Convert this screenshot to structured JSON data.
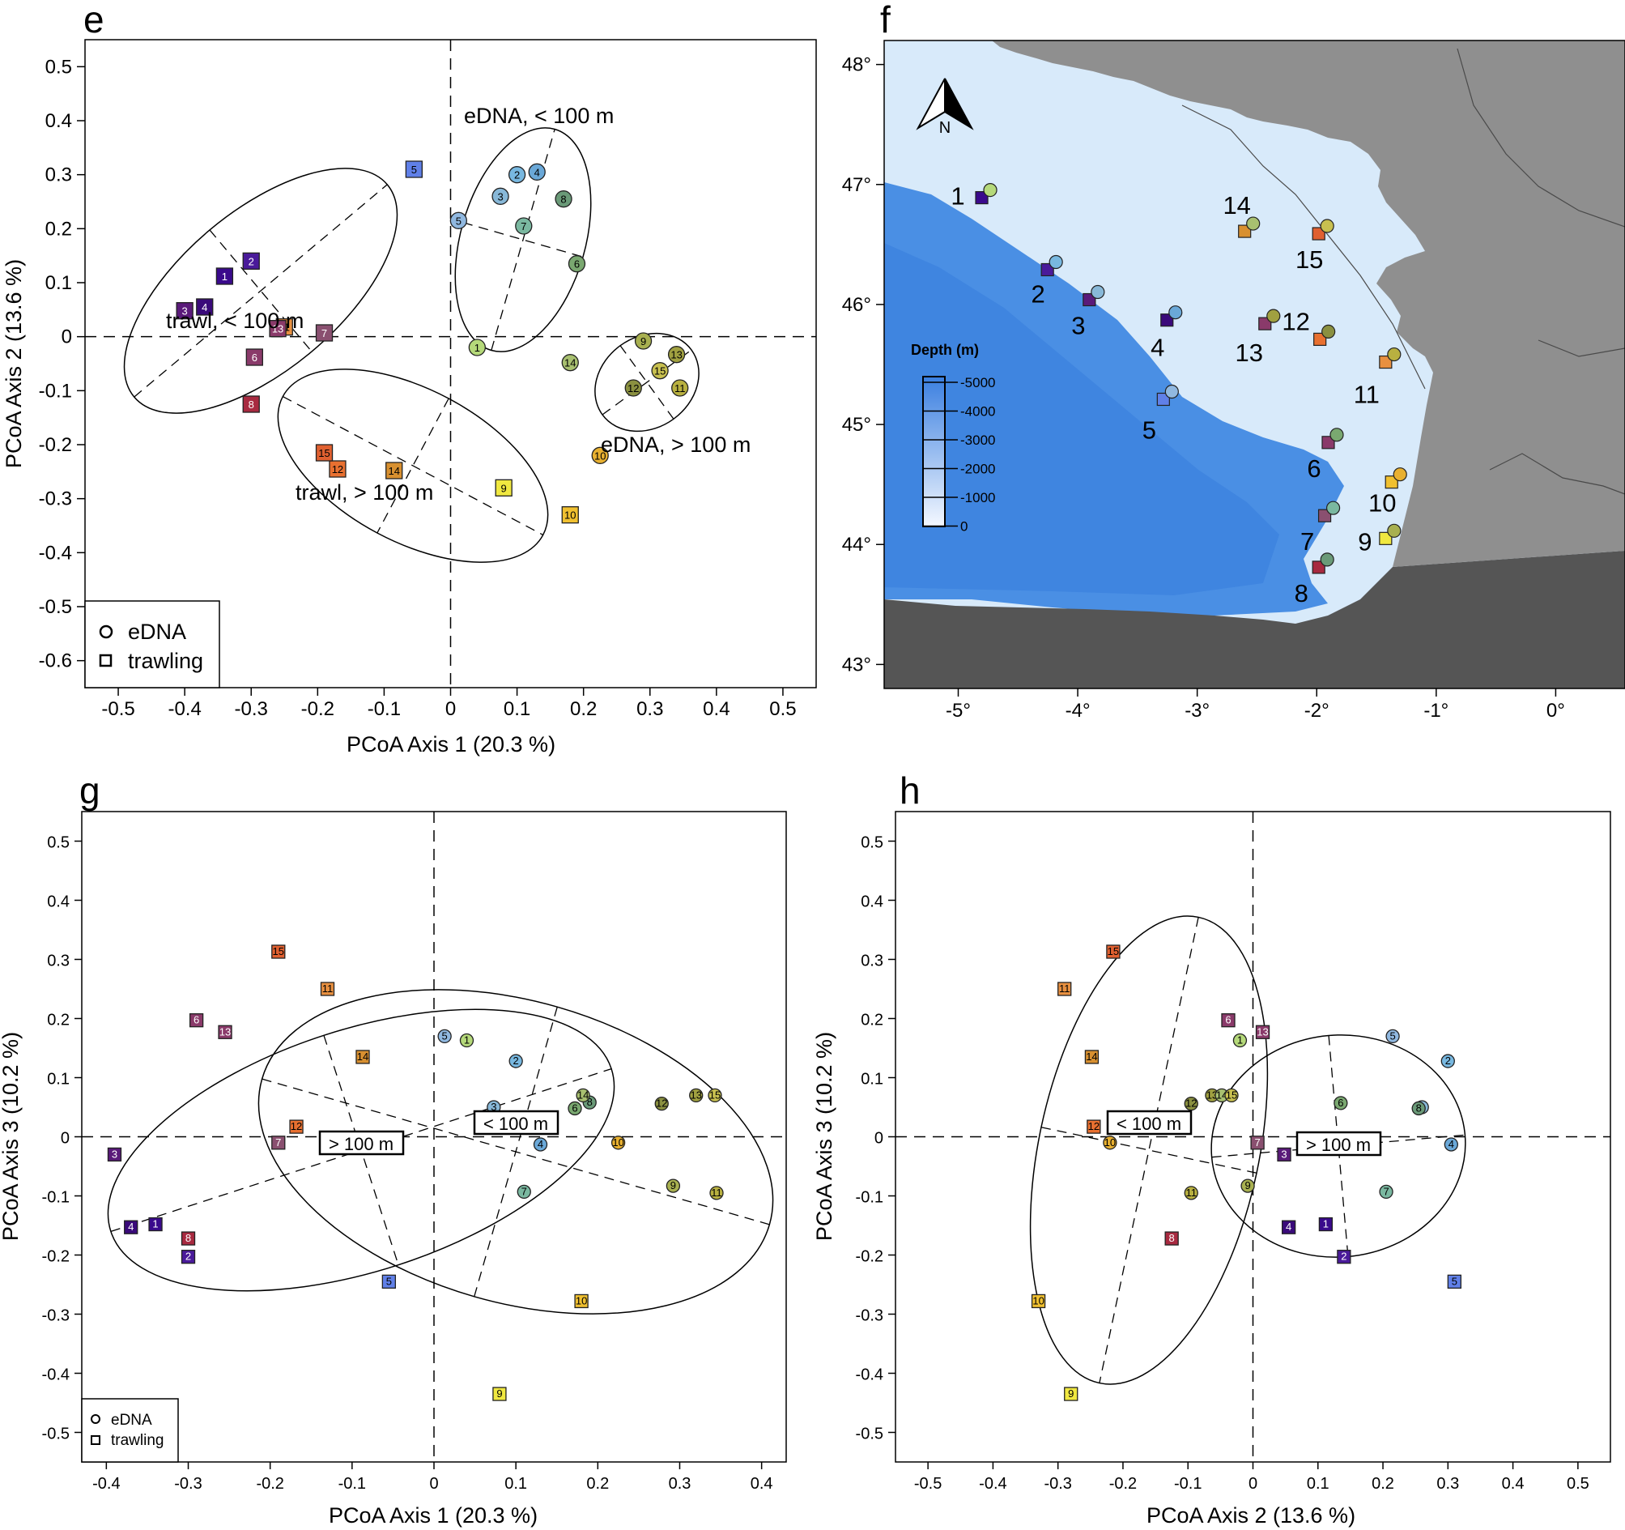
{
  "chart_data": [
    {
      "panel": "e",
      "type": "scatter",
      "xlabel": "PCoA Axis 1 (20.3 %)",
      "ylabel": "PCoA Axis 2 (13.6 %)",
      "xlim": [
        -0.55,
        0.55
      ],
      "ylim": [
        -0.65,
        0.55
      ],
      "xticks": [
        -0.5,
        -0.4,
        -0.3,
        -0.2,
        -0.1,
        0,
        0.1,
        0.2,
        0.3,
        0.4,
        0.5
      ],
      "xtick_labels": [
        "-0.5",
        "-0.4",
        "-0.3",
        "-0.2",
        "-0.1",
        "0",
        "0.1",
        "0.2",
        "0.3",
        "0.4",
        "0.5"
      ],
      "yticks": [
        0.5,
        0.4,
        0.3,
        0.2,
        0.1,
        0,
        -0.1,
        -0.2,
        -0.3,
        -0.4,
        -0.5,
        -0.6
      ],
      "ytick_labels": [
        "0.5",
        "0.4",
        "0.3",
        "0.2",
        "0.1",
        "0",
        "-0.1",
        "-0.2",
        "-0.3",
        "-0.4",
        "-0.5",
        "-0.6"
      ],
      "legend": {
        "position": "bottom-left",
        "entries": [
          {
            "label": "eDNA",
            "shape": "circle"
          },
          {
            "label": "trawling",
            "shape": "square"
          }
        ]
      },
      "series": [
        {
          "name": "eDNA",
          "shape": "circle",
          "points": [
            {
              "id": "1",
              "x": 0.04,
              "y": -0.02
            },
            {
              "id": "2",
              "x": 0.1,
              "y": 0.3
            },
            {
              "id": "3",
              "x": 0.075,
              "y": 0.26
            },
            {
              "id": "4",
              "x": 0.13,
              "y": 0.305
            },
            {
              "id": "5",
              "x": 0.012,
              "y": 0.215
            },
            {
              "id": "6",
              "x": 0.19,
              "y": 0.135
            },
            {
              "id": "7",
              "x": 0.11,
              "y": 0.205
            },
            {
              "id": "8",
              "x": 0.17,
              "y": 0.255
            },
            {
              "id": "9",
              "x": 0.29,
              "y": -0.008
            },
            {
              "id": "10",
              "x": 0.225,
              "y": -0.22
            },
            {
              "id": "11",
              "x": 0.345,
              "y": -0.095
            },
            {
              "id": "12",
              "x": 0.275,
              "y": -0.095
            },
            {
              "id": "13",
              "x": 0.34,
              "y": -0.033
            },
            {
              "id": "14",
              "x": 0.18,
              "y": -0.048
            },
            {
              "id": "15",
              "x": 0.315,
              "y": -0.063
            }
          ]
        },
        {
          "name": "trawling",
          "shape": "square",
          "points": [
            {
              "id": "1",
              "x": -0.34,
              "y": 0.112
            },
            {
              "id": "2",
              "x": -0.3,
              "y": 0.14
            },
            {
              "id": "3",
              "x": -0.4,
              "y": 0.048
            },
            {
              "id": "4",
              "x": -0.37,
              "y": 0.055
            },
            {
              "id": "5",
              "x": -0.055,
              "y": 0.31
            },
            {
              "id": "6",
              "x": -0.295,
              "y": -0.038
            },
            {
              "id": "7",
              "x": -0.19,
              "y": 0.007
            },
            {
              "id": "8",
              "x": -0.3,
              "y": -0.125
            },
            {
              "id": "9",
              "x": 0.08,
              "y": -0.28
            },
            {
              "id": "10",
              "x": 0.18,
              "y": -0.33
            },
            {
              "id": "11",
              "x": -0.25,
              "y": 0.018
            },
            {
              "id": "12",
              "x": -0.17,
              "y": -0.245
            },
            {
              "id": "13",
              "x": -0.26,
              "y": 0.015
            },
            {
              "id": "14",
              "x": -0.085,
              "y": -0.248
            },
            {
              "id": "15",
              "x": -0.19,
              "y": -0.215
            }
          ]
        }
      ],
      "annotations": [
        "eDNA, < 100 m",
        "eDNA, > 100 m",
        "trawl, < 100 m",
        "trawl, > 100 m"
      ]
    },
    {
      "panel": "f",
      "type": "map",
      "lon_ticks": [
        "-5°",
        "-4°",
        "-3°",
        "-2°",
        "-1°",
        "0°"
      ],
      "lat_ticks": [
        "48°",
        "47°",
        "46°",
        "45°",
        "44°",
        "43°"
      ],
      "legend_title": "Depth (m)",
      "depth_levels": [
        "-5000",
        "-4000",
        "-3000",
        "-2000",
        "-1000",
        "0"
      ],
      "north_label": "N",
      "stations": [
        {
          "id": "1",
          "lon": -4.8,
          "lat": 46.9
        },
        {
          "id": "2",
          "lon": -4.25,
          "lat": 46.3
        },
        {
          "id": "3",
          "lon": -3.9,
          "lat": 46.05
        },
        {
          "id": "4",
          "lon": -3.25,
          "lat": 45.88
        },
        {
          "id": "5",
          "lon": -3.28,
          "lat": 45.22
        },
        {
          "id": "6",
          "lon": -1.9,
          "lat": 44.86
        },
        {
          "id": "7",
          "lon": -1.93,
          "lat": 44.25
        },
        {
          "id": "8",
          "lon": -1.98,
          "lat": 43.82
        },
        {
          "id": "9",
          "lon": -1.42,
          "lat": 44.06
        },
        {
          "id": "10",
          "lon": -1.37,
          "lat": 44.53
        },
        {
          "id": "11",
          "lon": -1.42,
          "lat": 45.53
        },
        {
          "id": "12",
          "lon": -1.97,
          "lat": 45.72
        },
        {
          "id": "13",
          "lon": -2.43,
          "lat": 45.85
        },
        {
          "id": "14",
          "lon": -2.6,
          "lat": 46.62
        },
        {
          "id": "15",
          "lon": -1.98,
          "lat": 46.6
        }
      ]
    },
    {
      "panel": "g",
      "type": "scatter",
      "xlabel": "PCoA Axis 1 (20.3 %)",
      "ylabel": "PCoA Axis 3 (10.2 %)",
      "xlim": [
        -0.43,
        0.43
      ],
      "ylim": [
        -0.55,
        0.55
      ],
      "xticks": [
        -0.4,
        -0.3,
        -0.2,
        -0.1,
        0,
        0.1,
        0.2,
        0.3,
        0.4
      ],
      "xtick_labels": [
        "-0.4",
        "-0.3",
        "-0.2",
        "-0.1",
        "0",
        "0.1",
        "0.2",
        "0.3",
        "0.4"
      ],
      "yticks": [
        0.5,
        0.4,
        0.3,
        0.2,
        0.1,
        0,
        -0.1,
        -0.2,
        -0.3,
        -0.4,
        -0.5
      ],
      "ytick_labels": [
        "0.5",
        "0.4",
        "0.3",
        "0.2",
        "0.1",
        "0",
        "-0.1",
        "-0.2",
        "-0.3",
        "-0.4",
        "-0.5"
      ],
      "legend": {
        "position": "bottom-left",
        "entries": [
          {
            "label": "eDNA",
            "shape": "circle"
          },
          {
            "label": "trawling",
            "shape": "square"
          }
        ]
      },
      "series": [
        {
          "name": "eDNA",
          "shape": "circle",
          "points": [
            {
              "id": "1",
              "x": 0.04,
              "y": 0.163
            },
            {
              "id": "2",
              "x": 0.1,
              "y": 0.128
            },
            {
              "id": "3",
              "x": 0.073,
              "y": 0.05
            },
            {
              "id": "4",
              "x": 0.13,
              "y": -0.013
            },
            {
              "id": "5",
              "x": 0.013,
              "y": 0.17
            },
            {
              "id": "6",
              "x": 0.172,
              "y": 0.048
            },
            {
              "id": "7",
              "x": 0.11,
              "y": -0.093
            },
            {
              "id": "8",
              "x": 0.19,
              "y": 0.058
            },
            {
              "id": "9",
              "x": 0.292,
              "y": -0.083
            },
            {
              "id": "10",
              "x": 0.225,
              "y": -0.01
            },
            {
              "id": "11",
              "x": 0.345,
              "y": -0.095
            },
            {
              "id": "12",
              "x": 0.278,
              "y": 0.056
            },
            {
              "id": "13",
              "x": 0.32,
              "y": 0.07
            },
            {
              "id": "14",
              "x": 0.182,
              "y": 0.07
            },
            {
              "id": "15",
              "x": 0.343,
              "y": 0.07
            }
          ]
        },
        {
          "name": "trawling",
          "shape": "square",
          "points": [
            {
              "id": "1",
              "x": -0.34,
              "y": -0.148
            },
            {
              "id": "2",
              "x": -0.3,
              "y": -0.203
            },
            {
              "id": "3",
              "x": -0.39,
              "y": -0.03
            },
            {
              "id": "4",
              "x": -0.37,
              "y": -0.153
            },
            {
              "id": "5",
              "x": -0.055,
              "y": -0.245
            },
            {
              "id": "6",
              "x": -0.29,
              "y": 0.197
            },
            {
              "id": "7",
              "x": -0.19,
              "y": -0.01
            },
            {
              "id": "8",
              "x": -0.3,
              "y": -0.172
            },
            {
              "id": "9",
              "x": 0.08,
              "y": -0.435
            },
            {
              "id": "10",
              "x": 0.18,
              "y": -0.278
            },
            {
              "id": "11",
              "x": -0.13,
              "y": 0.25
            },
            {
              "id": "12",
              "x": -0.168,
              "y": 0.017
            },
            {
              "id": "13",
              "x": -0.255,
              "y": 0.177
            },
            {
              "id": "14",
              "x": -0.087,
              "y": 0.135
            },
            {
              "id": "15",
              "x": -0.19,
              "y": 0.313
            }
          ]
        }
      ],
      "annotations": [
        "> 100 m",
        "< 100 m"
      ]
    },
    {
      "panel": "h",
      "type": "scatter",
      "xlabel": "PCoA Axis 2 (13.6 %)",
      "ylabel": "PCoA Axis 3 (10.2 %)",
      "xlim": [
        -0.55,
        0.55
      ],
      "ylim": [
        -0.55,
        0.55
      ],
      "xticks": [
        -0.5,
        -0.4,
        -0.3,
        -0.2,
        -0.1,
        0,
        0.1,
        0.2,
        0.3,
        0.4,
        0.5
      ],
      "xtick_labels": [
        "-0.5",
        "-0.4",
        "-0.3",
        "-0.2",
        "-0.1",
        "0",
        "0.1",
        "0.2",
        "0.3",
        "0.4",
        "0.5"
      ],
      "yticks": [
        0.5,
        0.4,
        0.3,
        0.2,
        0.1,
        0,
        -0.1,
        -0.2,
        -0.3,
        -0.4,
        -0.5
      ],
      "ytick_labels": [
        "0.5",
        "0.4",
        "0.3",
        "0.2",
        "0.1",
        "0",
        "-0.1",
        "-0.2",
        "-0.3",
        "-0.4",
        "-0.5"
      ],
      "series": [
        {
          "name": "eDNA",
          "shape": "circle",
          "points": [
            {
              "id": "1",
              "x": -0.02,
              "y": 0.163
            },
            {
              "id": "2",
              "x": 0.3,
              "y": 0.128
            },
            {
              "id": "3",
              "x": 0.26,
              "y": 0.05
            },
            {
              "id": "4",
              "x": 0.305,
              "y": -0.013
            },
            {
              "id": "5",
              "x": 0.215,
              "y": 0.17
            },
            {
              "id": "6",
              "x": 0.135,
              "y": 0.057
            },
            {
              "id": "7",
              "x": 0.205,
              "y": -0.093
            },
            {
              "id": "8",
              "x": 0.255,
              "y": 0.048
            },
            {
              "id": "9",
              "x": -0.008,
              "y": -0.083
            },
            {
              "id": "10",
              "x": -0.22,
              "y": -0.01
            },
            {
              "id": "11",
              "x": -0.095,
              "y": -0.095
            },
            {
              "id": "12",
              "x": -0.095,
              "y": 0.056
            },
            {
              "id": "13",
              "x": -0.063,
              "y": 0.07
            },
            {
              "id": "14",
              "x": -0.048,
              "y": 0.07
            },
            {
              "id": "15",
              "x": -0.033,
              "y": 0.07
            }
          ]
        },
        {
          "name": "trawling",
          "shape": "square",
          "points": [
            {
              "id": "1",
              "x": 0.112,
              "y": -0.148
            },
            {
              "id": "2",
              "x": 0.14,
              "y": -0.203
            },
            {
              "id": "3",
              "x": 0.048,
              "y": -0.03
            },
            {
              "id": "4",
              "x": 0.055,
              "y": -0.153
            },
            {
              "id": "5",
              "x": 0.31,
              "y": -0.245
            },
            {
              "id": "6",
              "x": -0.038,
              "y": 0.197
            },
            {
              "id": "7",
              "x": 0.007,
              "y": -0.01
            },
            {
              "id": "8",
              "x": -0.125,
              "y": -0.172
            },
            {
              "id": "9",
              "x": -0.28,
              "y": -0.435
            },
            {
              "id": "10",
              "x": -0.33,
              "y": -0.278
            },
            {
              "id": "11",
              "x": -0.29,
              "y": 0.25
            },
            {
              "id": "12",
              "x": -0.245,
              "y": 0.017
            },
            {
              "id": "13",
              "x": 0.015,
              "y": 0.177
            },
            {
              "id": "14",
              "x": -0.248,
              "y": 0.135
            },
            {
              "id": "15",
              "x": -0.215,
              "y": 0.313
            }
          ]
        }
      ],
      "annotations": [
        "< 100 m",
        "> 100 m"
      ]
    }
  ],
  "station_colors": {
    "1": "#b5d97a",
    "2": "#3b0a8c",
    "3": "#7a3d9c",
    "4": "#4b1a9a",
    "5": "#8098e0",
    "6": "#8c3a78",
    "7": "#b06f8a",
    "8": "#b22a45",
    "9": "#e8e040",
    "10": "#f0b030",
    "11": "#f0a030",
    "12": "#e87a30",
    "13": "#8a4060",
    "14": "#d89a30",
    "15": "#e06a38"
  },
  "edna_colors": {
    "1": "#b5d97a",
    "2": "#78b8e0",
    "3": "#88b8d8",
    "4": "#6aa8d8",
    "5": "#90b8e0",
    "6": "#7aa870",
    "7": "#7ab8a0",
    "8": "#6a9a78",
    "9": "#a8b050",
    "10": "#e8b030",
    "11": "#b8b040",
    "12": "#8a9040",
    "13": "#a0a040",
    "14": "#a8c070",
    "15": "#c8c050"
  },
  "trawl_colors": {
    "1": "#3a0a8c",
    "2": "#4a1a9a",
    "3": "#5a1a7a",
    "4": "#3a0a7a",
    "5": "#6080e8",
    "6": "#8a3a6a",
    "7": "#8a5070",
    "8": "#a82a40",
    "9": "#f0e840",
    "10": "#f0c030",
    "11": "#e89040",
    "12": "#e87030",
    "13": "#8a3a6a",
    "14": "#d89030",
    "15": "#e06030"
  }
}
